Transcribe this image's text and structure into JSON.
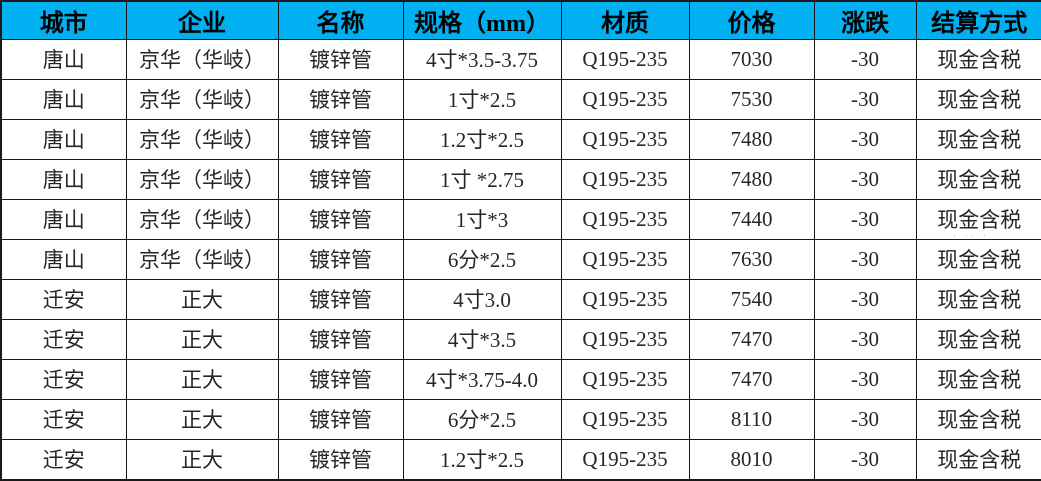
{
  "table": {
    "headers": [
      "城市",
      "企业",
      "名称",
      "规格（mm）",
      "材质",
      "价格",
      "涨跌",
      "结算方式"
    ],
    "column_keys": [
      "city",
      "company",
      "name",
      "spec",
      "material",
      "price",
      "change",
      "settlement"
    ],
    "rows": [
      [
        "唐山",
        "京华（华岐）",
        "镀锌管",
        "4寸*3.5-3.75",
        "Q195-235",
        "7030",
        "-30",
        "现金含税"
      ],
      [
        "唐山",
        "京华（华岐）",
        "镀锌管",
        "1寸*2.5",
        "Q195-235",
        "7530",
        "-30",
        "现金含税"
      ],
      [
        "唐山",
        "京华（华岐）",
        "镀锌管",
        "1.2寸*2.5",
        "Q195-235",
        "7480",
        "-30",
        "现金含税"
      ],
      [
        "唐山",
        "京华（华岐）",
        "镀锌管",
        "1寸 *2.75",
        "Q195-235",
        "7480",
        "-30",
        "现金含税"
      ],
      [
        "唐山",
        "京华（华岐）",
        "镀锌管",
        "1寸*3",
        "Q195-235",
        "7440",
        "-30",
        "现金含税"
      ],
      [
        "唐山",
        "京华（华岐）",
        "镀锌管",
        "6分*2.5",
        "Q195-235",
        "7630",
        "-30",
        "现金含税"
      ],
      [
        "迁安",
        "正大",
        "镀锌管",
        "4寸3.0",
        "Q195-235",
        "7540",
        "-30",
        "现金含税"
      ],
      [
        "迁安",
        "正大",
        "镀锌管",
        "4寸*3.5",
        "Q195-235",
        "7470",
        "-30",
        "现金含税"
      ],
      [
        "迁安",
        "正大",
        "镀锌管",
        "4寸*3.75-4.0",
        "Q195-235",
        "7470",
        "-30",
        "现金含税"
      ],
      [
        "迁安",
        "正大",
        "镀锌管",
        "6分*2.5",
        "Q195-235",
        "8110",
        "-30",
        "现金含税"
      ],
      [
        "迁安",
        "正大",
        "镀锌管",
        "1.2寸*2.5",
        "Q195-235",
        "8010",
        "-30",
        "现金含税"
      ]
    ]
  },
  "colors": {
    "header_bg": "#00b0f0",
    "header_text": "#000000",
    "body_text": "#262626",
    "border": "#1a1a1a"
  },
  "watermark": {
    "text": "· ·· ·"
  }
}
